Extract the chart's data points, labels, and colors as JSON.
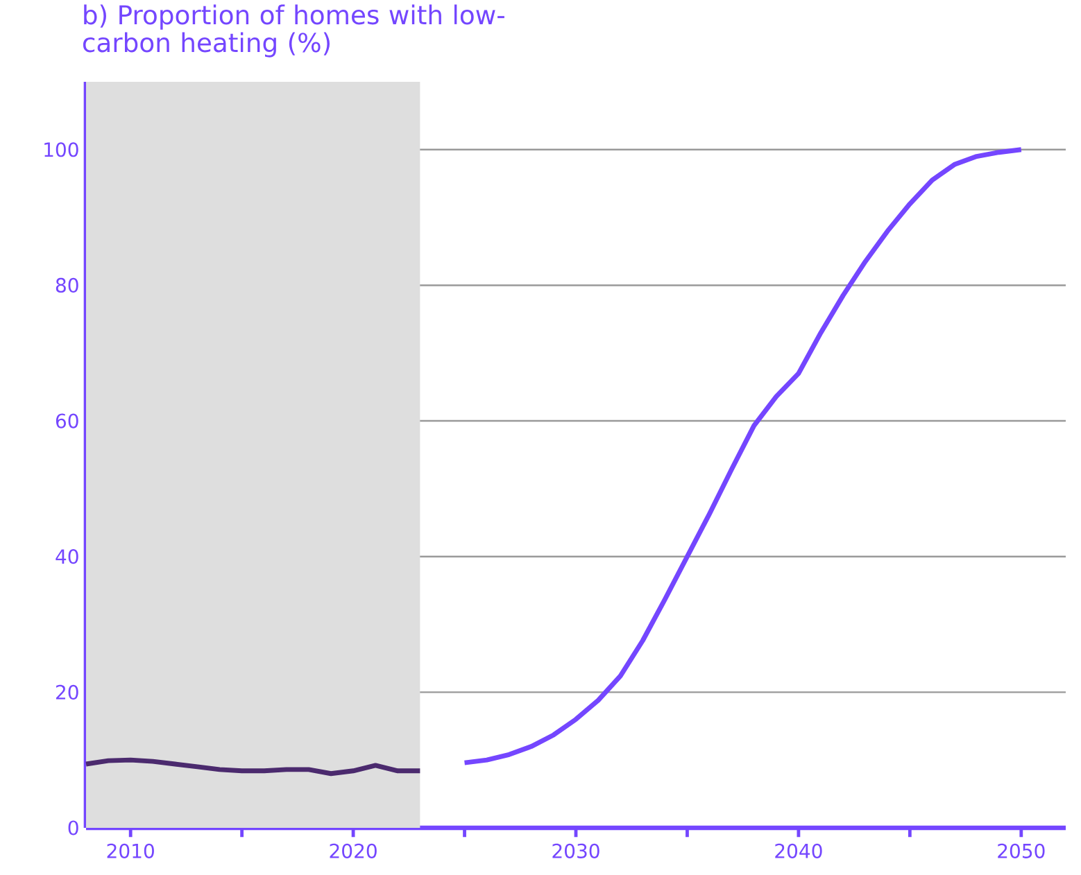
{
  "chart_data": {
    "type": "line",
    "title": "b) Proportion of homes with low-carbon heating (%)",
    "xlim": [
      2008,
      2052
    ],
    "ylim": [
      0,
      110
    ],
    "xticks": [
      {
        "value": 2010,
        "label": "2010"
      },
      {
        "value": 2015,
        "label": null
      },
      {
        "value": 2020,
        "label": "2020"
      },
      {
        "value": 2025,
        "label": null
      },
      {
        "value": 2030,
        "label": "2030"
      },
      {
        "value": 2035,
        "label": null
      },
      {
        "value": 2040,
        "label": "2040"
      },
      {
        "value": 2045,
        "label": null
      },
      {
        "value": 2050,
        "label": "2050"
      }
    ],
    "yticks": [
      0,
      20,
      40,
      60,
      80,
      100
    ],
    "grid": "y",
    "bands": [
      {
        "axis": "x",
        "from": 2008,
        "to": 2023,
        "color": "#dedede"
      }
    ],
    "series": [
      {
        "color": "#4b2a6e",
        "x": [
          2008,
          2009,
          2010,
          2011,
          2012,
          2013,
          2014,
          2015,
          2016,
          2017,
          2018,
          2019,
          2020,
          2021,
          2022,
          2023
        ],
        "values": [
          9.4,
          9.9,
          10,
          9.8,
          9.4,
          9.0,
          8.6,
          8.4,
          8.4,
          8.6,
          8.6,
          8.0,
          8.4,
          9.2,
          8.4,
          8.4
        ]
      },
      {
        "color": "#7446ff",
        "x": [
          2025,
          2026,
          2027,
          2028,
          2029,
          2030,
          2031,
          2032,
          2033,
          2034,
          2035,
          2036,
          2037,
          2038,
          2039,
          2040,
          2041,
          2042,
          2043,
          2044,
          2045,
          2046,
          2047,
          2048,
          2049,
          2050
        ],
        "values": [
          9.6,
          10,
          10.8,
          12,
          13.7,
          16,
          18.8,
          22.4,
          27.6,
          33.7,
          40,
          46.3,
          52.9,
          59.3,
          63.6,
          67,
          73,
          78.5,
          83.5,
          88,
          92,
          95.5,
          97.8,
          99,
          99.6,
          100
        ]
      }
    ]
  }
}
